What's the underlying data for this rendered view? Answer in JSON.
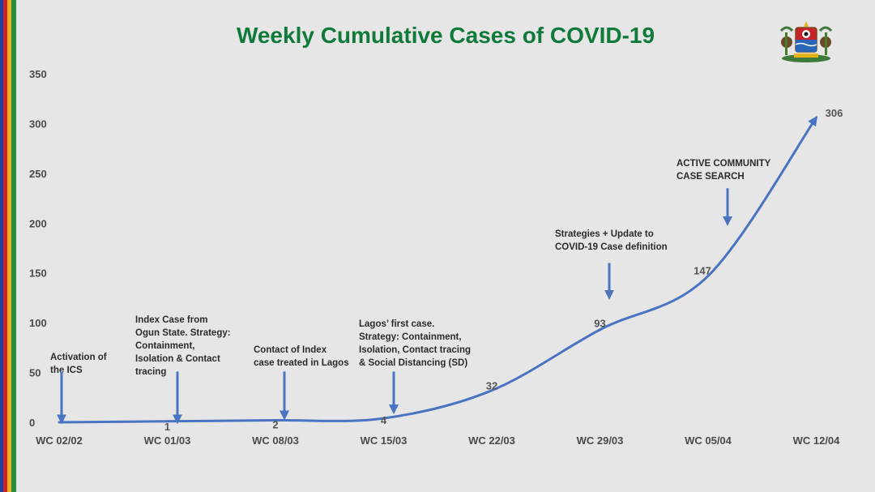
{
  "colors": {
    "background": "#e6e6e6",
    "title": "#0f7a3a",
    "line": "#4a74c2",
    "text": "#2b2b2b",
    "axis_text": "#4a4a4a",
    "stripes": [
      "#1f3f99",
      "#c8232c",
      "#e9b320",
      "#2a8c3e"
    ]
  },
  "logo": {
    "icon": "lagos-state-coat-of-arms-icon"
  },
  "chart_data": {
    "type": "line",
    "title": "Weekly Cumulative Cases of COVID-19",
    "xlabel": "",
    "ylabel": "",
    "categories": [
      "WC 02/02",
      "WC 01/03",
      "WC 08/03",
      "WC 15/03",
      "WC 22/03",
      "WC 29/03",
      "WC 05/04",
      "WC 12/04"
    ],
    "series": [
      {
        "values": [
          0,
          1,
          2,
          4,
          32,
          93,
          147,
          306
        ]
      }
    ],
    "data_labels": [
      "",
      "1",
      "2",
      "4",
      "32",
      "93",
      "147",
      "306"
    ],
    "ylim": [
      0,
      350
    ],
    "yticks": [
      0,
      50,
      100,
      150,
      200,
      250,
      300,
      350
    ],
    "grid": false,
    "legend": "none",
    "annotations": [
      {
        "category_index": 0,
        "lines": [
          "Activation of",
          "the ICS"
        ],
        "arrow": [
          51,
          0
        ]
      },
      {
        "category_index": 1,
        "lines": [
          "Index Case from",
          "Ogun State. Strategy:",
          "Containment,",
          "Isolation & Contact",
          "tracing"
        ],
        "arrow": [
          51,
          0
        ]
      },
      {
        "category_index": 2,
        "lines": [
          "Contact of Index",
          "case treated in Lagos"
        ],
        "arrow": [
          51,
          4
        ]
      },
      {
        "category_index": 3,
        "lines": [
          "Lagos’ first case.",
          "Strategy: Containment,",
          "Isolation, Contact tracing",
          "& Social Distancing (SD)"
        ],
        "arrow": [
          51,
          10
        ]
      },
      {
        "category_index": 5,
        "lines": [
          "Strategies + Update to",
          "COVID-19 Case definition"
        ],
        "arrow": [
          160,
          125
        ]
      },
      {
        "category_index": 6,
        "lines": [
          "ACTIVE COMMUNITY",
          "CASE SEARCH"
        ],
        "arrow": [
          235,
          199
        ]
      }
    ]
  }
}
